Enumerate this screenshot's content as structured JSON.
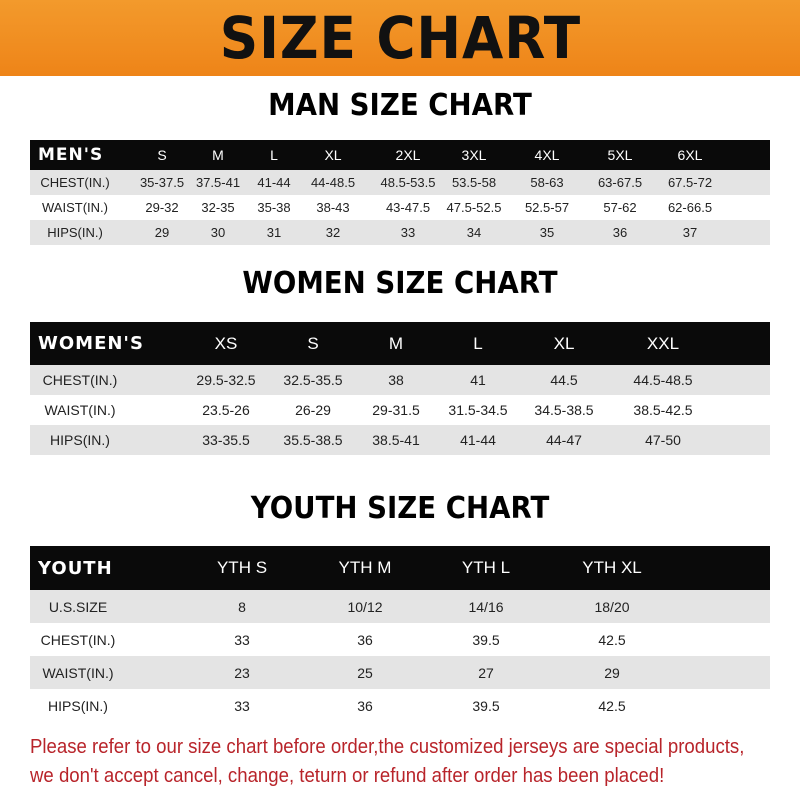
{
  "banner_title": "SIZE CHART",
  "colors": {
    "banner": "#f08a1c",
    "header_row": "#0a0a0a",
    "stripe": "#e4e4e4",
    "note": "#b8242a"
  },
  "men": {
    "title": "MAN SIZE CHART",
    "header": [
      "MEN'S",
      "S",
      "M",
      "L",
      "XL",
      "2XL",
      "3XL",
      "4XL",
      "5XL",
      "6XL"
    ],
    "rows": [
      [
        "CHEST(IN.)",
        "35-37.5",
        "37.5-41",
        "41-44",
        "44-48.5",
        "48.5-53.5",
        "53.5-58",
        "58-63",
        "63-67.5",
        "67.5-72"
      ],
      [
        "WAIST(IN.)",
        "29-32",
        "32-35",
        "35-38",
        "38-43",
        "43-47.5",
        "47.5-52.5",
        "52.5-57",
        "57-62",
        "62-66.5"
      ],
      [
        "HIPS(IN.)",
        "29",
        "30",
        "31",
        "32",
        "33",
        "34",
        "35",
        "36",
        "37"
      ]
    ]
  },
  "women": {
    "title": "WOMEN SIZE CHART",
    "header": [
      "WOMEN'S",
      "XS",
      "S",
      "M",
      "L",
      "XL",
      "XXL"
    ],
    "rows": [
      [
        "CHEST(IN.)",
        "29.5-32.5",
        "32.5-35.5",
        "38",
        "41",
        "44.5",
        "44.5-48.5"
      ],
      [
        "WAIST(IN.)",
        "23.5-26",
        "26-29",
        "29-31.5",
        "31.5-34.5",
        "34.5-38.5",
        "38.5-42.5"
      ],
      [
        "HIPS(IN.)",
        "33-35.5",
        "35.5-38.5",
        "38.5-41",
        "41-44",
        "44-47",
        "47-50"
      ]
    ]
  },
  "youth": {
    "title": "YOUTH SIZE CHART",
    "header": [
      "YOUTH",
      "YTH S",
      "YTH M",
      "YTH L",
      "YTH XL"
    ],
    "rows": [
      [
        "U.S.SIZE",
        "8",
        "10/12",
        "14/16",
        "18/20"
      ],
      [
        "CHEST(IN.)",
        "33",
        "36",
        "39.5",
        "42.5"
      ],
      [
        "WAIST(IN.)",
        "23",
        "25",
        "27",
        "29"
      ],
      [
        "HIPS(IN.)",
        "33",
        "36",
        "39.5",
        "42.5"
      ]
    ]
  },
  "note": {
    "line1": "Please refer to our size chart before order,the customized jerseys are special products,",
    "line2": "we don't accept cancel, change, teturn or refund after order has been placed!"
  }
}
